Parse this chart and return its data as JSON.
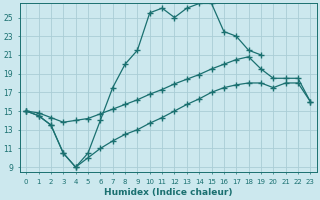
{
  "xlabel": "Humidex (Indice chaleur)",
  "background_color": "#cce8ee",
  "line_color": "#1a7070",
  "grid_color": "#aacdd6",
  "xlim": [
    -0.5,
    23.5
  ],
  "ylim": [
    8.5,
    26.5
  ],
  "xticks": [
    0,
    1,
    2,
    3,
    4,
    5,
    6,
    7,
    8,
    9,
    10,
    11,
    12,
    13,
    14,
    15,
    16,
    17,
    18,
    19,
    20,
    21,
    22,
    23
  ],
  "yticks": [
    9,
    11,
    13,
    15,
    17,
    19,
    21,
    23,
    25
  ],
  "line1_x": [
    0,
    1,
    2,
    3,
    4,
    5,
    6,
    7,
    8,
    9,
    10,
    11,
    12,
    13,
    14,
    15,
    16,
    17,
    18,
    19
  ],
  "line1_y": [
    15.0,
    14.5,
    13.5,
    10.5,
    9.0,
    10.5,
    14.0,
    17.5,
    20.0,
    21.5,
    25.5,
    26.0,
    25.0,
    26.0,
    26.5,
    26.5,
    23.5,
    23.0,
    21.5,
    21.0
  ],
  "line2_x": [
    0,
    1,
    2,
    3,
    4,
    5,
    6,
    7,
    8,
    9,
    10,
    11,
    12,
    13,
    14,
    15,
    16,
    17,
    18,
    19,
    20,
    21,
    22,
    23
  ],
  "line2_y": [
    15.0,
    14.8,
    14.3,
    13.8,
    14.0,
    14.2,
    14.7,
    15.2,
    15.7,
    16.2,
    16.8,
    17.3,
    17.9,
    18.4,
    18.9,
    19.5,
    20.0,
    20.5,
    20.8,
    19.5,
    18.5,
    18.5,
    18.5,
    16.0
  ],
  "line3_x": [
    0,
    1,
    2,
    3,
    4,
    5,
    6,
    7,
    8,
    9,
    10,
    11,
    12,
    13,
    14,
    15,
    16,
    17,
    18,
    19,
    20,
    21,
    22,
    23
  ],
  "line3_y": [
    15.0,
    14.5,
    13.5,
    10.5,
    9.0,
    10.0,
    11.0,
    11.8,
    12.5,
    13.0,
    13.7,
    14.3,
    15.0,
    15.7,
    16.3,
    17.0,
    17.5,
    17.8,
    18.0,
    18.0,
    17.5,
    18.0,
    18.0,
    16.0
  ]
}
